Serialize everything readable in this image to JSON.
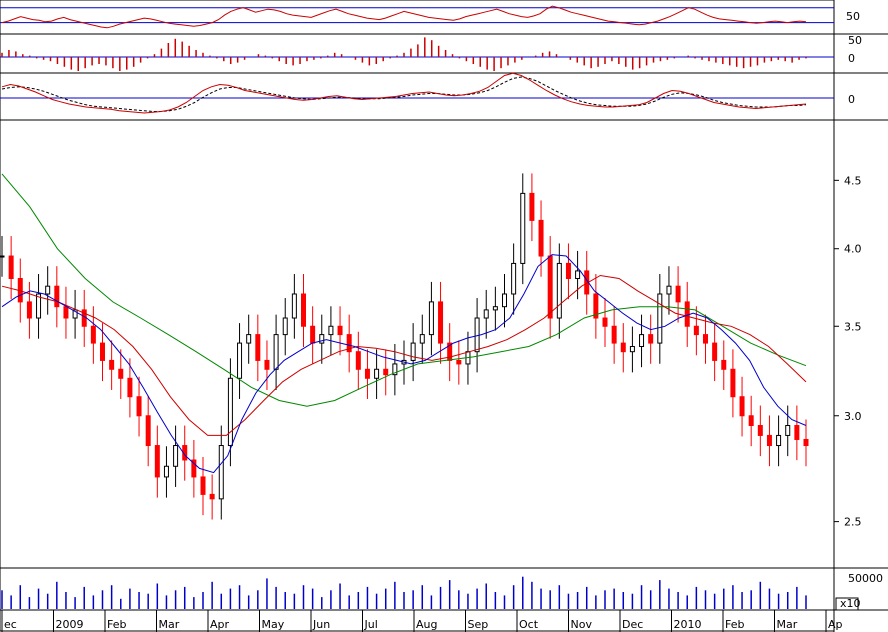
{
  "chart_data": {
    "type": "line",
    "title": "",
    "panels": {
      "oscillator": {
        "ticks": [
          "50"
        ],
        "colors": {
          "line": "#cc0000",
          "ref": "#0000cc"
        },
        "values": [
          40,
          42,
          45,
          48,
          46,
          44,
          43,
          41,
          42,
          45,
          47,
          44,
          42,
          40,
          38,
          36,
          34,
          33,
          35,
          38,
          40,
          42,
          44,
          46,
          45,
          43,
          41,
          39,
          38,
          37,
          36,
          35,
          36,
          38,
          40,
          44,
          50,
          55,
          58,
          60,
          57,
          54,
          56,
          58,
          57,
          55,
          52,
          50,
          49,
          48,
          47,
          50,
          53,
          56,
          58,
          55,
          52,
          50,
          48,
          46,
          45,
          44,
          46,
          49,
          52,
          55,
          53,
          51,
          49,
          47,
          46,
          45,
          44,
          43,
          45,
          48,
          50,
          52,
          54,
          56,
          58,
          55,
          52,
          50,
          48,
          47,
          49,
          52,
          58,
          62,
          60,
          57,
          54,
          52,
          50,
          48,
          46,
          44,
          42,
          41,
          40,
          39,
          38,
          37,
          38,
          40,
          42,
          45,
          48,
          52,
          56,
          60,
          58,
          54,
          50,
          47,
          45,
          44,
          43,
          42,
          41,
          40,
          39,
          40,
          41,
          42,
          41,
          40,
          41,
          42,
          41
        ]
      },
      "histogram": {
        "ticks": [
          "0"
        ],
        "colors": {
          "bar": "#cc0000",
          "ref": "#0000cc"
        },
        "values": [
          0.3,
          0.5,
          0.4,
          0.2,
          0.1,
          -0.1,
          -0.2,
          -0.3,
          -0.5,
          -0.7,
          -0.9,
          -1.0,
          -0.8,
          -0.6,
          -0.5,
          -0.6,
          -0.8,
          -1.0,
          -0.9,
          -0.7,
          -0.4,
          -0.1,
          0.2,
          0.6,
          1.0,
          1.3,
          1.1,
          0.8,
          0.5,
          0.3,
          0.1,
          -0.1,
          -0.3,
          -0.5,
          -0.4,
          -0.2,
          0.0,
          0.2,
          0.1,
          -0.1,
          -0.3,
          -0.5,
          -0.6,
          -0.5,
          -0.3,
          -0.2,
          -0.1,
          0.1,
          0.3,
          0.2,
          0.0,
          -0.2,
          -0.4,
          -0.6,
          -0.5,
          -0.3,
          -0.1,
          0.1,
          0.3,
          0.6,
          0.9,
          1.4,
          1.2,
          0.8,
          0.5,
          0.2,
          -0.1,
          -0.3,
          -0.5,
          -0.7,
          -0.9,
          -1.0,
          -0.8,
          -0.6,
          -0.4,
          -0.2,
          0.0,
          0.1,
          0.3,
          0.4,
          0.2,
          0.0,
          -0.2,
          -0.4,
          -0.6,
          -0.8,
          -0.7,
          -0.5,
          -0.3,
          -0.5,
          -0.7,
          -0.9,
          -0.8,
          -0.6,
          -0.4,
          -0.3,
          -0.2,
          -0.1,
          0.0,
          0.1,
          -0.1,
          -0.2,
          -0.3,
          -0.4,
          -0.5,
          -0.6,
          -0.7,
          -0.8,
          -0.7,
          -0.6,
          -0.4,
          -0.3,
          -0.2,
          -0.3,
          -0.4,
          -0.2,
          -0.1
        ]
      },
      "macd": {
        "ticks": [
          "0"
        ],
        "colors": {
          "macd": "#cc0000",
          "signal": "#000000",
          "ref": "#0000cc"
        },
        "macd": [
          0.15,
          0.18,
          0.16,
          0.12,
          0.08,
          0.03,
          -0.02,
          -0.05,
          -0.08,
          -0.1,
          -0.12,
          -0.13,
          -0.14,
          -0.15,
          -0.17,
          -0.18,
          -0.19,
          -0.2,
          -0.19,
          -0.18,
          -0.16,
          -0.12,
          -0.06,
          0.02,
          0.1,
          0.15,
          0.18,
          0.17,
          0.14,
          0.1,
          0.08,
          0.06,
          0.04,
          0.02,
          0.0,
          -0.02,
          -0.03,
          -0.02,
          0.0,
          0.02,
          0.03,
          0.01,
          -0.01,
          -0.02,
          -0.01,
          0.0,
          0.01,
          0.02,
          0.04,
          0.06,
          0.07,
          0.08,
          0.06,
          0.04,
          0.03,
          0.04,
          0.06,
          0.09,
          0.14,
          0.22,
          0.3,
          0.33,
          0.3,
          0.24,
          0.17,
          0.1,
          0.04,
          -0.01,
          -0.05,
          -0.08,
          -0.1,
          -0.11,
          -0.12,
          -0.12,
          -0.11,
          -0.1,
          -0.09,
          -0.06,
          0.0,
          0.06,
          0.1,
          0.09,
          0.06,
          0.02,
          -0.02,
          -0.06,
          -0.08,
          -0.1,
          -0.12,
          -0.13,
          -0.14,
          -0.13,
          -0.12,
          -0.11,
          -0.1,
          -0.09,
          -0.08
        ],
        "signal": [
          0.12,
          0.14,
          0.15,
          0.14,
          0.12,
          0.09,
          0.05,
          0.01,
          -0.03,
          -0.06,
          -0.09,
          -0.11,
          -0.12,
          -0.13,
          -0.14,
          -0.15,
          -0.16,
          -0.17,
          -0.18,
          -0.18,
          -0.17,
          -0.15,
          -0.11,
          -0.06,
          0.01,
          0.07,
          0.12,
          0.14,
          0.14,
          0.12,
          0.1,
          0.08,
          0.06,
          0.04,
          0.02,
          0.0,
          -0.01,
          -0.02,
          -0.01,
          0.0,
          0.01,
          0.01,
          0.0,
          -0.01,
          -0.01,
          -0.01,
          0.0,
          0.01,
          0.02,
          0.04,
          0.05,
          0.06,
          0.06,
          0.05,
          0.04,
          0.04,
          0.05,
          0.07,
          0.1,
          0.15,
          0.21,
          0.26,
          0.28,
          0.26,
          0.22,
          0.16,
          0.1,
          0.05,
          0.0,
          -0.04,
          -0.07,
          -0.09,
          -0.1,
          -0.11,
          -0.11,
          -0.11,
          -0.1,
          -0.08,
          -0.04,
          0.01,
          0.05,
          0.07,
          0.06,
          0.04,
          0.01,
          -0.03,
          -0.06,
          -0.08,
          -0.1,
          -0.11,
          -0.12,
          -0.12,
          -0.12,
          -0.11,
          -0.1,
          -0.1,
          -0.09
        ]
      },
      "price": {
        "ticks": [
          "4.5",
          "4.0",
          "3.5",
          "3.0",
          "2.5"
        ],
        "tick_values": [
          4.5,
          4.0,
          3.5,
          3.0,
          2.5
        ],
        "scale": "log",
        "colors": {
          "up": "#000000",
          "down": "#ff0000",
          "ma_fast": "#0000cc",
          "ma_mid": "#cc0000",
          "ma_slow": "#008800"
        },
        "close": [
          3.95,
          3.8,
          3.65,
          3.55,
          3.7,
          3.75,
          3.62,
          3.55,
          3.6,
          3.5,
          3.4,
          3.3,
          3.25,
          3.2,
          3.1,
          3.0,
          2.85,
          2.7,
          2.75,
          2.85,
          2.78,
          2.7,
          2.62,
          2.6,
          2.85,
          3.2,
          3.4,
          3.45,
          3.3,
          3.25,
          3.45,
          3.55,
          3.7,
          3.5,
          3.4,
          3.45,
          3.5,
          3.45,
          3.35,
          3.25,
          3.2,
          3.25,
          3.22,
          3.28,
          3.3,
          3.4,
          3.45,
          3.65,
          3.4,
          3.3,
          3.28,
          3.35,
          3.55,
          3.6,
          3.62,
          3.7,
          3.9,
          4.4,
          4.2,
          3.95,
          3.55,
          3.9,
          3.8,
          3.85,
          3.7,
          3.55,
          3.5,
          3.4,
          3.35,
          3.38,
          3.45,
          3.4,
          3.7,
          3.75,
          3.65,
          3.5,
          3.45,
          3.4,
          3.3,
          3.25,
          3.1,
          3.0,
          2.95,
          2.9,
          2.85,
          2.9,
          2.95,
          2.88,
          2.85
        ],
        "ma_fast": [
          3.62,
          3.68,
          3.72,
          3.7,
          3.65,
          3.6,
          3.55,
          3.48,
          3.38,
          3.28,
          3.15,
          3.02,
          2.9,
          2.8,
          2.74,
          2.72,
          2.8,
          2.98,
          3.12,
          3.22,
          3.3,
          3.35,
          3.4,
          3.42,
          3.4,
          3.38,
          3.35,
          3.32,
          3.3,
          3.28,
          3.3,
          3.35,
          3.4,
          3.43,
          3.45,
          3.48,
          3.55,
          3.7,
          3.88,
          3.96,
          3.95,
          3.85,
          3.72,
          3.65,
          3.58,
          3.52,
          3.48,
          3.5,
          3.55,
          3.58,
          3.55,
          3.48,
          3.4,
          3.3,
          3.15,
          3.05,
          2.98,
          2.95
        ],
        "ma_mid": [
          3.75,
          3.72,
          3.68,
          3.65,
          3.6,
          3.55,
          3.48,
          3.38,
          3.25,
          3.1,
          2.98,
          2.9,
          2.9,
          2.98,
          3.08,
          3.18,
          3.25,
          3.3,
          3.35,
          3.38,
          3.37,
          3.35,
          3.32,
          3.3,
          3.32,
          3.35,
          3.38,
          3.42,
          3.48,
          3.55,
          3.65,
          3.75,
          3.82,
          3.8,
          3.72,
          3.65,
          3.58,
          3.55,
          3.52,
          3.5,
          3.45,
          3.38,
          3.28,
          3.18
        ],
        "ma_slow": [
          4.55,
          4.3,
          4.0,
          3.8,
          3.65,
          3.55,
          3.45,
          3.35,
          3.25,
          3.15,
          3.08,
          3.05,
          3.08,
          3.15,
          3.22,
          3.28,
          3.3,
          3.32,
          3.35,
          3.38,
          3.45,
          3.55,
          3.6,
          3.62,
          3.62,
          3.6,
          3.5,
          3.4,
          3.33,
          3.27
        ]
      },
      "volume": {
        "ticks": [
          "50000"
        ],
        "unit_label": "x10",
        "colors": {
          "bar": "#0000cc"
        },
        "values": [
          0.55,
          0.4,
          0.7,
          0.35,
          0.6,
          0.45,
          0.8,
          0.5,
          0.35,
          0.65,
          0.4,
          0.55,
          0.7,
          0.3,
          0.6,
          0.5,
          0.45,
          0.75,
          0.4,
          0.55,
          0.65,
          0.35,
          0.5,
          0.8,
          0.45,
          0.6,
          0.7,
          0.4,
          0.55,
          0.9,
          0.65,
          0.5,
          0.45,
          0.7,
          0.6,
          0.35,
          0.55,
          0.75,
          0.4,
          0.5,
          0.65,
          0.45,
          0.6,
          0.8,
          0.5,
          0.55,
          0.7,
          0.4,
          0.65,
          0.85,
          0.55,
          0.45,
          0.6,
          0.75,
          0.5,
          0.4,
          0.7,
          0.95,
          0.8,
          0.6,
          0.55,
          0.7,
          0.45,
          0.5,
          0.65,
          0.4,
          0.55,
          0.6,
          0.5,
          0.45,
          0.7,
          0.55,
          0.85,
          0.6,
          0.5,
          0.4,
          0.65,
          0.55,
          0.45,
          0.6,
          0.7,
          0.5,
          0.55,
          0.8,
          0.6,
          0.45,
          0.5,
          0.65,
          0.4
        ]
      }
    },
    "x_labels": [
      {
        "label": "ec"
      },
      {
        "label": "2009"
      },
      {
        "label": "Feb"
      },
      {
        "label": "Mar"
      },
      {
        "label": "Apr"
      },
      {
        "label": "May"
      },
      {
        "label": "Jun"
      },
      {
        "label": "Jul"
      },
      {
        "label": "Aug"
      },
      {
        "label": "Sep"
      },
      {
        "label": "Oct"
      },
      {
        "label": "Nov"
      },
      {
        "label": "Dec"
      },
      {
        "label": "2010"
      },
      {
        "label": "Feb"
      },
      {
        "label": "Mar"
      },
      {
        "label": "Ap"
      }
    ]
  }
}
